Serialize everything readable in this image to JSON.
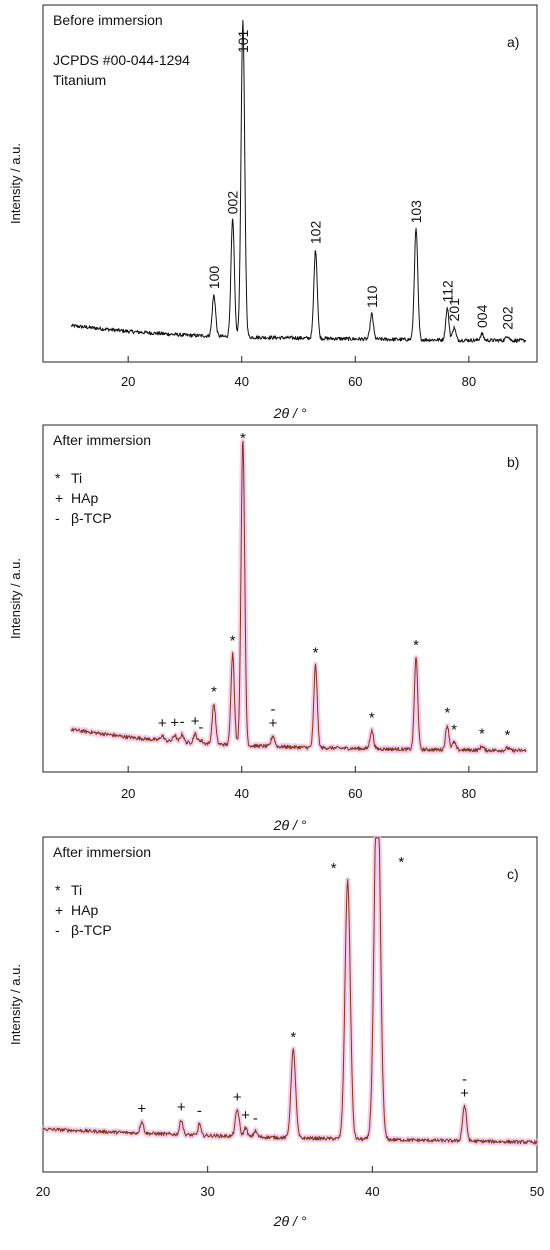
{
  "chart_data": [
    {
      "id": "a",
      "type": "line",
      "panel_label": "a)",
      "title": "Before immersion",
      "notes": [
        "JCPDS #00-044-1294",
        "Titanium"
      ],
      "xlabel": "2θ / °",
      "ylabel": "Intensity / a.u.",
      "xlim": [
        5,
        92
      ],
      "x_ticks": [
        20,
        40,
        60,
        80
      ],
      "ylim": [
        0,
        100
      ],
      "line_color": "#111111",
      "baseline": [
        [
          10,
          5.8
        ],
        [
          20,
          4.0
        ],
        [
          30,
          2.8
        ],
        [
          40,
          2.2
        ],
        [
          50,
          1.9
        ],
        [
          60,
          1.6
        ],
        [
          70,
          1.4
        ],
        [
          80,
          1.2
        ],
        [
          90,
          1.1
        ]
      ],
      "peaks": [
        {
          "x": 35.1,
          "y": 13,
          "w": 0.3,
          "label": "100"
        },
        {
          "x": 38.4,
          "y": 37,
          "w": 0.3,
          "label": "002"
        },
        {
          "x": 40.2,
          "y": 100,
          "w": 0.32,
          "label": "101"
        },
        {
          "x": 53.0,
          "y": 28,
          "w": 0.3,
          "label": "102"
        },
        {
          "x": 62.9,
          "y": 8,
          "w": 0.28,
          "label": "110"
        },
        {
          "x": 70.7,
          "y": 35,
          "w": 0.3,
          "label": "103"
        },
        {
          "x": 76.2,
          "y": 10,
          "w": 0.28,
          "label": "112"
        },
        {
          "x": 77.4,
          "y": 4,
          "w": 0.28,
          "label": "201"
        },
        {
          "x": 82.3,
          "y": 2,
          "w": 0.28,
          "label": "004"
        },
        {
          "x": 86.8,
          "y": 1.5,
          "w": 0.28,
          "label": "202"
        }
      ]
    },
    {
      "id": "b",
      "type": "line",
      "panel_label": "b)",
      "title": "After immersion",
      "legend": [
        {
          "symbol": "*",
          "label": "Ti"
        },
        {
          "symbol": "+",
          "label": "HAp"
        },
        {
          "symbol": "-",
          "label": "β-TCP"
        }
      ],
      "xlabel": "2θ / °",
      "ylabel": "Intensity / a.u.",
      "xlim": [
        5,
        92
      ],
      "x_ticks": [
        20,
        40,
        60,
        80
      ],
      "ylim": [
        0,
        100
      ],
      "line_color": "#7a3a1a",
      "band_color": "#f2b8e6",
      "baseline": [
        [
          10,
          8.0
        ],
        [
          20,
          5.5
        ],
        [
          30,
          3.8
        ],
        [
          40,
          2.8
        ],
        [
          50,
          2.2
        ],
        [
          60,
          1.8
        ],
        [
          70,
          1.5
        ],
        [
          80,
          1.3
        ],
        [
          90,
          1.1
        ]
      ],
      "peaks": [
        {
          "x": 26.0,
          "y": 1.5,
          "w": 0.3,
          "label": "+"
        },
        {
          "x": 28.2,
          "y": 2.0,
          "w": 0.3,
          "label": "+"
        },
        {
          "x": 29.5,
          "y": 2.5,
          "w": 0.3,
          "label": "-"
        },
        {
          "x": 31.8,
          "y": 3.0,
          "w": 0.3,
          "label": "+"
        },
        {
          "x": 32.8,
          "y": 1.0,
          "w": 0.3,
          "label": "-"
        },
        {
          "x": 35.1,
          "y": 13,
          "w": 0.3,
          "label": "*"
        },
        {
          "x": 38.4,
          "y": 30,
          "w": 0.3,
          "label": "*"
        },
        {
          "x": 40.2,
          "y": 100,
          "w": 0.32,
          "label": "*"
        },
        {
          "x": 45.5,
          "y": 3.5,
          "w": 0.3,
          "label": "+-"
        },
        {
          "x": 53.0,
          "y": 27,
          "w": 0.3,
          "label": "*"
        },
        {
          "x": 62.9,
          "y": 6,
          "w": 0.3,
          "label": "*"
        },
        {
          "x": 70.7,
          "y": 30,
          "w": 0.3,
          "label": "*"
        },
        {
          "x": 76.2,
          "y": 8,
          "w": 0.3,
          "label": "*"
        },
        {
          "x": 77.4,
          "y": 2.5,
          "w": 0.3,
          "label": "*"
        },
        {
          "x": 82.3,
          "y": 1.2,
          "w": 0.3,
          "label": "*"
        },
        {
          "x": 86.8,
          "y": 0.8,
          "w": 0.3,
          "label": "*"
        }
      ]
    },
    {
      "id": "c",
      "type": "line",
      "panel_label": "c)",
      "title": "After immersion",
      "legend": [
        {
          "symbol": "*",
          "label": "Ti"
        },
        {
          "symbol": "+",
          "label": "HAp"
        },
        {
          "symbol": "-",
          "label": "β-TCP"
        }
      ],
      "xlabel": "2θ / °",
      "ylabel": "Intensity / a.u.",
      "xlim": [
        20,
        50
      ],
      "x_ticks": [
        20,
        30,
        40,
        50
      ],
      "ylim": [
        0,
        100
      ],
      "line_color": "#7a3a1a",
      "band_color": "#f2b8e6",
      "baseline": [
        [
          20,
          8.5
        ],
        [
          25,
          7.3
        ],
        [
          30,
          6.3
        ],
        [
          35,
          5.5
        ],
        [
          40,
          5.0
        ],
        [
          45,
          4.5
        ],
        [
          50,
          4.0
        ]
      ],
      "peaks": [
        {
          "x": 26.0,
          "y": 4,
          "w": 0.1,
          "label": "+"
        },
        {
          "x": 28.4,
          "y": 5,
          "w": 0.1,
          "label": "+"
        },
        {
          "x": 29.5,
          "y": 4,
          "w": 0.08,
          "label": "-"
        },
        {
          "x": 31.8,
          "y": 9,
          "w": 0.12,
          "label": "+"
        },
        {
          "x": 32.3,
          "y": 3,
          "w": 0.1,
          "label": "+"
        },
        {
          "x": 32.9,
          "y": 2,
          "w": 0.1,
          "label": "-"
        },
        {
          "x": 35.2,
          "y": 30,
          "w": 0.14,
          "label": "*"
        },
        {
          "x": 38.5,
          "y": 88,
          "w": 0.16,
          "label": "*"
        },
        {
          "x": 40.3,
          "y": 130,
          "w": 0.18,
          "label": "*"
        },
        {
          "x": 45.6,
          "y": 12,
          "w": 0.12,
          "label": "+-"
        }
      ]
    }
  ]
}
